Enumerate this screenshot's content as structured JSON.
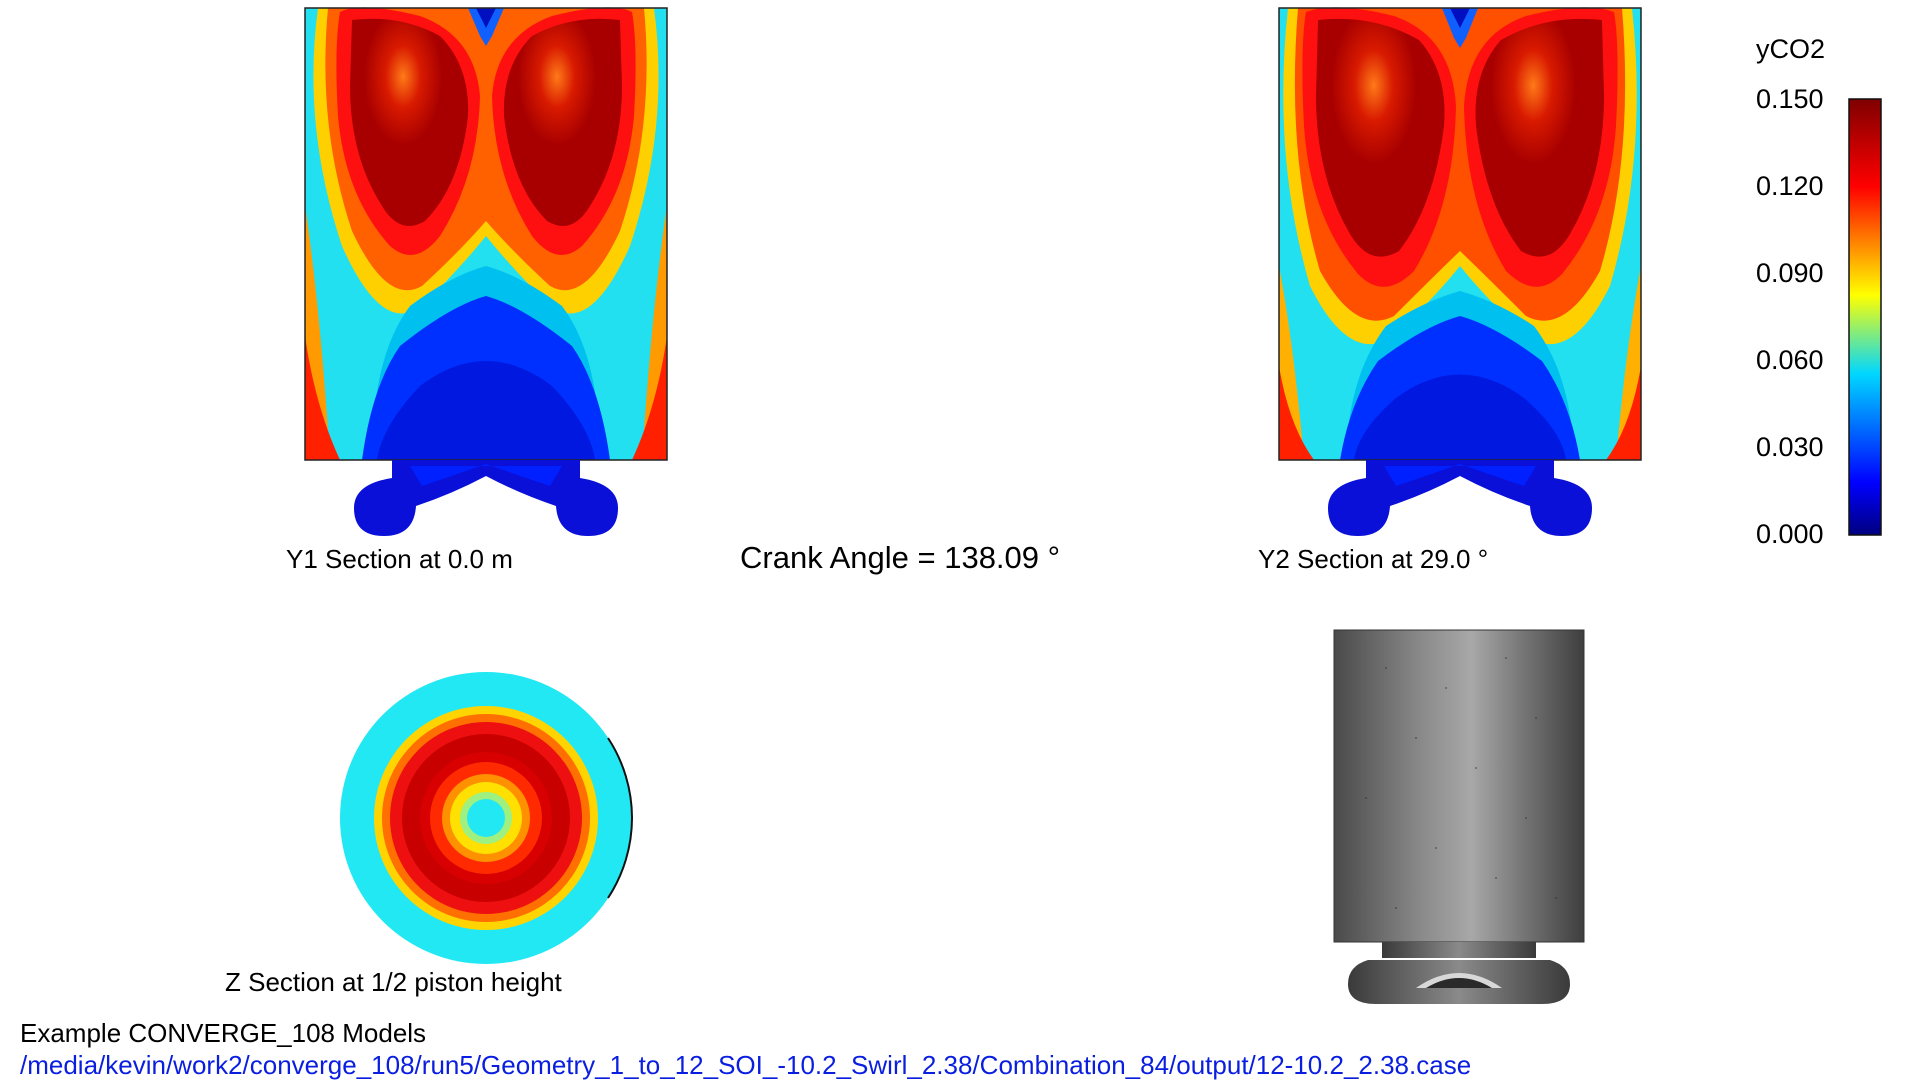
{
  "captions": {
    "y1": "Y1 Section at 0.0 m",
    "y2": "Y2 Section at 29.0 °",
    "z": "Z Section at 1/2 piston height"
  },
  "crank_angle": "Crank Angle = 138.09 °",
  "colorbar": {
    "title": "yCO2",
    "ticks": [
      "0.150",
      "0.120",
      "0.090",
      "0.060",
      "0.030",
      "0.000"
    ],
    "min": 0.0,
    "max": 0.15,
    "colors": [
      "#00007f",
      "#0000ff",
      "#00d7ff",
      "#ffff00",
      "#ff0000",
      "#7f0000"
    ]
  },
  "footer": {
    "title": "Example CONVERGE_108 Models",
    "path": "/media/kevin/work2/converge_108/run5/Geometry_1_to_12_SOI_-10.2_Swirl_2.38/Combination_84/output/12-10.2_2.38.case"
  }
}
